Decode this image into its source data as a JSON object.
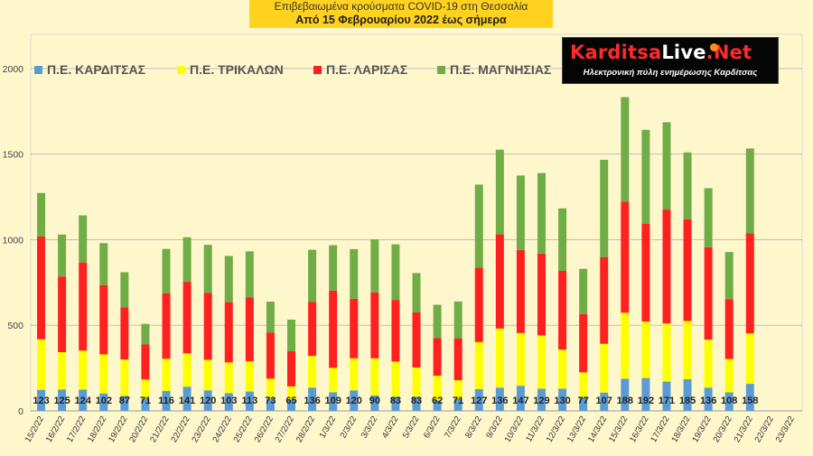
{
  "title": {
    "line1": "Επιβεβαιωμένα κρούσματα COVID-19 στη Θεσσαλία",
    "line2": "Από 15 Φεβρουαρίου 2022 έως σήμερα"
  },
  "logo": {
    "name_part1": "Karditsa",
    "name_part2": "Live",
    "name_part3": ".Net",
    "tagline": "Ηλεκτρονική πύλη ενημέρωσης Καρδίτσας"
  },
  "colors": {
    "karditsa": "#5b9bd5",
    "trikala": "#ffff00",
    "larisa": "#ff2020",
    "magnisia": "#70ad47",
    "background": "#fff7cc",
    "gridline": "#bfbfbf"
  },
  "chart_data": {
    "type": "bar",
    "stacked": true,
    "legend_position": "top-left",
    "grid": true,
    "ylim": [
      0,
      2200
    ],
    "yticks": [
      0,
      500,
      1000,
      1500,
      2000
    ],
    "categories": [
      "15/2/22",
      "16/2/22",
      "17/2/22",
      "18/2/22",
      "19/2/22",
      "20/2/22",
      "21/2/22",
      "22/2/22",
      "23/2/22",
      "24/2/22",
      "25/2/22",
      "26/2/22",
      "27/2/22",
      "28/2/22",
      "1/3/22",
      "2/3/22",
      "3/3/22",
      "4/3/22",
      "5/3/22",
      "6/3/22",
      "7/3/22",
      "8/3/22",
      "9/3/22",
      "10/3/22",
      "11/3/22",
      "12/3/22",
      "13/3/22",
      "14/3/22",
      "15/3/22",
      "16/3/22",
      "17/3/22",
      "18/3/22",
      "19/3/22",
      "20/3/22",
      "21/3/22",
      "22/3/22",
      "23/3/22"
    ],
    "series": [
      {
        "name": "Π.Ε. ΚΑΡΔΙΤΣΑΣ",
        "color": "#5b9bd5",
        "labeled": true,
        "values": [
          123,
          125,
          124,
          102,
          87,
          71,
          116,
          141,
          120,
          103,
          113,
          73,
          65,
          136,
          109,
          120,
          90,
          83,
          83,
          62,
          71,
          127,
          136,
          147,
          129,
          130,
          77,
          107,
          188,
          192,
          171,
          185,
          136,
          108,
          158,
          null,
          null
        ]
      },
      {
        "name": "Π.Ε. ΤΡΙΚΑΛΩΝ",
        "color": "#ffff00",
        "values": [
          295,
          218,
          228,
          228,
          213,
          112,
          188,
          195,
          178,
          180,
          177,
          115,
          78,
          185,
          142,
          187,
          217,
          205,
          170,
          143,
          108,
          275,
          345,
          308,
          312,
          228,
          148,
          285,
          385,
          330,
          340,
          340,
          280,
          195,
          295,
          null,
          null
        ]
      },
      {
        "name": "Π.Ε. ΛΑΡΙΣΑΣ",
        "color": "#ff2020",
        "values": [
          600,
          442,
          515,
          405,
          305,
          205,
          382,
          418,
          392,
          352,
          372,
          270,
          205,
          315,
          452,
          348,
          385,
          360,
          322,
          220,
          245,
          435,
          550,
          485,
          478,
          460,
          340,
          505,
          650,
          570,
          665,
          595,
          540,
          350,
          585,
          null,
          null
        ]
      },
      {
        "name": "Π.Ε. ΜΑΓΝΗΣΙΑΣ",
        "color": "#70ad47",
        "values": [
          255,
          245,
          275,
          245,
          205,
          120,
          260,
          260,
          280,
          270,
          270,
          180,
          185,
          305,
          265,
          290,
          310,
          325,
          230,
          195,
          215,
          485,
          495,
          435,
          470,
          365,
          265,
          570,
          610,
          550,
          510,
          390,
          345,
          275,
          495,
          null,
          null
        ]
      }
    ]
  }
}
